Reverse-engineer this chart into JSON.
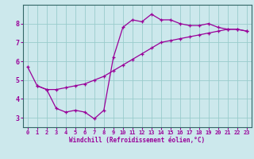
{
  "xlabel": "Windchill (Refroidissement éolien,°C)",
  "bg_color": "#cce8ec",
  "line_color": "#990099",
  "grid_color": "#99cccc",
  "spine_color": "#336666",
  "xlim": [
    -0.5,
    23.5
  ],
  "ylim": [
    2.5,
    9.0
  ],
  "yticks": [
    3,
    4,
    5,
    6,
    7,
    8
  ],
  "xticks": [
    0,
    1,
    2,
    3,
    4,
    5,
    6,
    7,
    8,
    9,
    10,
    11,
    12,
    13,
    14,
    15,
    16,
    17,
    18,
    19,
    20,
    21,
    22,
    23
  ],
  "line1_x": [
    0,
    1,
    2,
    3,
    4,
    5,
    6,
    7,
    8,
    9,
    10,
    11,
    12,
    13,
    14,
    15,
    16,
    17,
    18,
    19,
    20,
    21,
    22,
    23
  ],
  "line1_y": [
    5.7,
    4.7,
    4.5,
    3.5,
    3.3,
    3.4,
    3.3,
    2.95,
    3.4,
    6.2,
    7.8,
    8.2,
    8.1,
    8.5,
    8.2,
    8.2,
    8.0,
    7.9,
    7.9,
    8.0,
    7.8,
    7.7,
    7.7,
    7.6
  ],
  "line2_x": [
    1,
    2,
    3,
    4,
    5,
    6,
    7,
    8,
    9,
    10,
    11,
    12,
    13,
    14,
    15,
    16,
    17,
    18,
    19,
    20,
    21,
    22,
    23
  ],
  "line2_y": [
    4.7,
    4.5,
    4.5,
    4.6,
    4.7,
    4.8,
    5.0,
    5.2,
    5.5,
    5.8,
    6.1,
    6.4,
    6.7,
    7.0,
    7.1,
    7.2,
    7.3,
    7.4,
    7.5,
    7.6,
    7.7,
    7.7,
    7.6
  ]
}
